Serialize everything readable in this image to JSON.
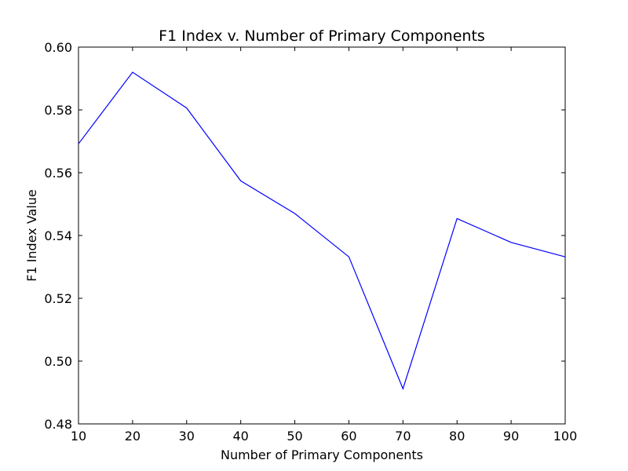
{
  "chart_data": {
    "type": "line",
    "title": "F1 Index v. Number of Primary Components",
    "xlabel": "Number of Primary Components",
    "ylabel": "F1 Index Value",
    "xlim": [
      10,
      100
    ],
    "ylim": [
      0.48,
      0.6
    ],
    "xticks": [
      "10",
      "20",
      "30",
      "40",
      "50",
      "60",
      "70",
      "80",
      "90",
      "100"
    ],
    "yticks": [
      "0.48",
      "0.50",
      "0.52",
      "0.54",
      "0.56",
      "0.58",
      "0.60"
    ],
    "grid": false,
    "legend": "none",
    "series": [
      {
        "color": "#0000ff",
        "x": [
          10,
          20,
          30,
          40,
          50,
          60,
          70,
          80,
          90,
          100
        ],
        "y": [
          0.5692,
          0.592,
          0.5806,
          0.5574,
          0.547,
          0.5332,
          0.4912,
          0.5454,
          0.5378,
          0.5332
        ]
      }
    ]
  }
}
